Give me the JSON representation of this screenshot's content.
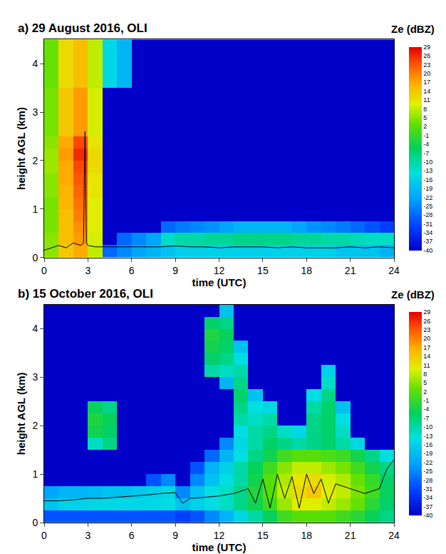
{
  "chart_data": [
    {
      "type": "heatmap",
      "title": "a) 29 August 2016, OLI",
      "xlabel": "time (UTC)",
      "ylabel": "height AGL (km)",
      "x": [
        0.5,
        1.5,
        2.5,
        3.5,
        4.5,
        5.5,
        6.5,
        7.5,
        8.5,
        9.5,
        10.5,
        11.5,
        12.5,
        13.5,
        14.5,
        15.5,
        16.5,
        17.5,
        18.5,
        19.5,
        20.5,
        21.5,
        22.5,
        23.5
      ],
      "y": [
        0.125,
        0.375,
        0.625,
        0.875,
        1.125,
        1.375,
        1.625,
        1.875,
        2.125,
        2.375,
        2.625,
        2.875,
        3.125,
        3.375,
        3.625,
        3.875,
        4.125,
        4.375
      ],
      "cells": [
        [
          5,
          14,
          17,
          8,
          -28,
          -25,
          -22,
          -20,
          -18,
          -16,
          -16,
          -16,
          -16,
          -16,
          -16,
          -16,
          -16,
          -16,
          -16,
          -16,
          -18,
          -18,
          -18,
          -20
        ],
        [
          5,
          15,
          18,
          9,
          -40,
          -28,
          -25,
          -22,
          -12,
          -10,
          -10,
          -9,
          -9,
          -8,
          -8,
          -8,
          -8,
          -9,
          -9,
          -10,
          -10,
          -11,
          -12,
          -12
        ],
        [
          4,
          15,
          19,
          10,
          -40,
          -40,
          -40,
          -40,
          -28,
          -26,
          -25,
          -24,
          -22,
          -20,
          -20,
          -20,
          -20,
          -22,
          -24,
          -25,
          -26,
          -28,
          -30,
          -32
        ],
        [
          4,
          15,
          20,
          10,
          -40,
          -40,
          -40,
          -40,
          -40,
          -40,
          -40,
          -40,
          -40,
          -40,
          -40,
          -40,
          -40,
          -40,
          -40,
          -40,
          -40,
          -40,
          -40,
          -40
        ],
        [
          4,
          16,
          21,
          10,
          -40,
          -40,
          -40,
          -40,
          -40,
          -40,
          -40,
          -40,
          -40,
          -40,
          -40,
          -40,
          -40,
          -40,
          -40,
          -40,
          -40,
          -40,
          -40,
          -40
        ],
        [
          5,
          16,
          22,
          11,
          -40,
          -40,
          -40,
          -40,
          -40,
          -40,
          -40,
          -40,
          -40,
          -40,
          -40,
          -40,
          -40,
          -40,
          -40,
          -40,
          -40,
          -40,
          -40,
          -40
        ],
        [
          5,
          17,
          23,
          11,
          -40,
          -40,
          -40,
          -40,
          -40,
          -40,
          -40,
          -40,
          -40,
          -40,
          -40,
          -40,
          -40,
          -40,
          -40,
          -40,
          -40,
          -40,
          -40,
          -40
        ],
        [
          6,
          17,
          24,
          12,
          -40,
          -40,
          -40,
          -40,
          -40,
          -40,
          -40,
          -40,
          -40,
          -40,
          -40,
          -40,
          -40,
          -40,
          -40,
          -40,
          -40,
          -40,
          -40,
          -40
        ],
        [
          6,
          18,
          26,
          12,
          -40,
          -40,
          -40,
          -40,
          -40,
          -40,
          -40,
          -40,
          -40,
          -40,
          -40,
          -40,
          -40,
          -40,
          -40,
          -40,
          -40,
          -40,
          -40,
          -40
        ],
        [
          5,
          17,
          24,
          11,
          -40,
          -40,
          -40,
          -40,
          -40,
          -40,
          -40,
          -40,
          -40,
          -40,
          -40,
          -40,
          -40,
          -40,
          -40,
          -40,
          -40,
          -40,
          -40,
          -40
        ],
        [
          4,
          14,
          18,
          9,
          -40,
          -40,
          -40,
          -40,
          -40,
          -40,
          -40,
          -40,
          -40,
          -40,
          -40,
          -40,
          -40,
          -40,
          -40,
          -40,
          -40,
          -40,
          -40,
          -40
        ],
        [
          4,
          14,
          18,
          9,
          -40,
          -40,
          -40,
          -40,
          -40,
          -40,
          -40,
          -40,
          -40,
          -40,
          -40,
          -40,
          -40,
          -40,
          -40,
          -40,
          -40,
          -40,
          -40,
          -40
        ],
        [
          4,
          14,
          18,
          9,
          -40,
          -40,
          -40,
          -40,
          -40,
          -40,
          -40,
          -40,
          -40,
          -40,
          -40,
          -40,
          -40,
          -40,
          -40,
          -40,
          -40,
          -40,
          -40,
          -40
        ],
        [
          4,
          14,
          18,
          9,
          -40,
          -40,
          -40,
          -40,
          -40,
          -40,
          -40,
          -40,
          -40,
          -40,
          -40,
          -40,
          -40,
          -40,
          -40,
          -40,
          -40,
          -40,
          -40,
          -40
        ],
        [
          3,
          12,
          15,
          8,
          -15,
          -20,
          -40,
          -40,
          -40,
          -40,
          -40,
          -40,
          -40,
          -40,
          -40,
          -40,
          -40,
          -40,
          -40,
          -40,
          -40,
          -40,
          -40,
          -40
        ],
        [
          3,
          12,
          15,
          8,
          -15,
          -20,
          -40,
          -40,
          -40,
          -40,
          -40,
          -40,
          -40,
          -40,
          -40,
          -40,
          -40,
          -40,
          -40,
          -40,
          -40,
          -40,
          -40,
          -40
        ],
        [
          3,
          12,
          15,
          8,
          -15,
          -20,
          -40,
          -40,
          -40,
          -40,
          -40,
          -40,
          -40,
          -40,
          -40,
          -40,
          -40,
          -40,
          -40,
          -40,
          -40,
          -40,
          -40,
          -40
        ],
        [
          3,
          12,
          15,
          8,
          -15,
          -20,
          -40,
          -40,
          -40,
          -40,
          -40,
          -40,
          -40,
          -40,
          -40,
          -40,
          -40,
          -40,
          -40,
          -40,
          -40,
          -40,
          -40,
          -40
        ]
      ],
      "xlim": [
        0,
        24
      ],
      "xticks": [
        0,
        3,
        6,
        9,
        12,
        15,
        18,
        21,
        24
      ],
      "ylim": [
        0,
        4.5
      ],
      "yticks": [
        0,
        1,
        2,
        3,
        4
      ],
      "colorbar": {
        "title": "Ze (dBZ)",
        "range": [
          -40,
          29
        ],
        "ticks": [
          29,
          26,
          23,
          20,
          17,
          14,
          11,
          8,
          5,
          2,
          -1,
          -4,
          -7,
          -10,
          -13,
          -16,
          -19,
          -22,
          -25,
          -28,
          -31,
          -34,
          -37,
          -40
        ]
      },
      "series": [
        {
          "color": "#000000",
          "x": [
            0,
            0.5,
            1,
            1.5,
            2,
            2.5,
            2.7,
            2.8,
            2.9,
            3,
            3.5,
            4,
            5,
            6,
            7,
            8,
            9,
            10,
            11,
            12,
            13,
            14,
            15,
            16,
            17,
            18,
            19,
            20,
            21,
            22,
            23,
            24
          ],
          "values": [
            0.15,
            0.2,
            0.25,
            0.2,
            0.3,
            0.25,
            0.3,
            2.6,
            0.3,
            0.25,
            0.22,
            0.22,
            0.22,
            0.22,
            0.22,
            0.22,
            0.24,
            0.22,
            0.22,
            0.2,
            0.22,
            0.22,
            0.22,
            0.2,
            0.22,
            0.2,
            0.2,
            0.2,
            0.22,
            0.2,
            0.22,
            0.2
          ]
        }
      ]
    },
    {
      "type": "heatmap",
      "title": "b) 15 October 2016, OLI",
      "xlabel": "time (UTC)",
      "ylabel": "height AGL (km)",
      "x": [
        0.5,
        1.5,
        2.5,
        3.5,
        4.5,
        5.5,
        6.5,
        7.5,
        8.5,
        9.5,
        10.5,
        11.5,
        12.5,
        13.5,
        14.5,
        15.5,
        16.5,
        17.5,
        18.5,
        19.5,
        20.5,
        21.5,
        22.5,
        23.5
      ],
      "y": [
        0.125,
        0.375,
        0.625,
        0.875,
        1.125,
        1.375,
        1.625,
        1.875,
        2.125,
        2.375,
        2.625,
        2.875,
        3.125,
        3.375,
        3.625,
        3.875,
        4.125,
        4.375
      ],
      "cells": [
        [
          -30,
          -30,
          -30,
          -30,
          -30,
          -30,
          -30,
          -30,
          -30,
          -32,
          -30,
          -25,
          -20,
          -15,
          -10,
          -5,
          0,
          2,
          2,
          2,
          0,
          -2,
          -5,
          -8
        ],
        [
          -18,
          -16,
          -16,
          -15,
          -15,
          -15,
          -15,
          -15,
          -14,
          -18,
          -16,
          -14,
          -12,
          -8,
          -4,
          0,
          6,
          10,
          10,
          8,
          6,
          3,
          -2,
          -6
        ],
        [
          -22,
          -20,
          -20,
          -19,
          -18,
          -18,
          -17,
          -16,
          -15,
          -25,
          -18,
          -14,
          -12,
          -8,
          -3,
          2,
          8,
          12,
          14,
          10,
          8,
          4,
          0,
          -5
        ],
        [
          -40,
          -40,
          -40,
          -40,
          -40,
          -40,
          -40,
          -30,
          -25,
          -40,
          -25,
          -18,
          -14,
          -10,
          -4,
          2,
          7,
          11,
          12,
          9,
          7,
          3,
          -1,
          -6
        ],
        [
          -40,
          -40,
          -40,
          -40,
          -40,
          -40,
          -40,
          -40,
          -40,
          -40,
          -30,
          -20,
          -16,
          -10,
          -5,
          0,
          5,
          8,
          8,
          6,
          4,
          0,
          -4,
          -8
        ],
        [
          -40,
          -40,
          -40,
          -40,
          -40,
          -40,
          -40,
          -40,
          -40,
          -40,
          -40,
          -28,
          -20,
          -14,
          -8,
          -4,
          0,
          2,
          2,
          1,
          0,
          -4,
          -8,
          -14
        ],
        [
          -40,
          -40,
          -40,
          -12,
          -8,
          -40,
          -40,
          -40,
          -40,
          -40,
          -40,
          -40,
          -25,
          -15,
          -10,
          -6,
          -8,
          -10,
          -8,
          -6,
          -10,
          -15,
          -40,
          -40
        ],
        [
          -40,
          -40,
          -40,
          -4,
          -6,
          -40,
          -40,
          -40,
          -40,
          -40,
          -40,
          -40,
          -40,
          -14,
          -10,
          -8,
          -12,
          -15,
          -8,
          -6,
          -12,
          -40,
          -40,
          -40
        ],
        [
          -40,
          -40,
          -40,
          -3,
          -5,
          -40,
          -40,
          -40,
          -40,
          -40,
          -40,
          -40,
          -40,
          -10,
          -12,
          -10,
          -40,
          -40,
          -8,
          -6,
          -14,
          -40,
          -40,
          -40
        ],
        [
          -40,
          -40,
          -40,
          -5,
          -8,
          -40,
          -40,
          -40,
          -40,
          -40,
          -40,
          -40,
          -40,
          -8,
          -14,
          -15,
          -40,
          -40,
          -10,
          -6,
          -18,
          -40,
          -40,
          -40
        ],
        [
          -40,
          -40,
          -40,
          -40,
          -40,
          -40,
          -40,
          -40,
          -40,
          -40,
          -40,
          -40,
          -40,
          -6,
          -18,
          -40,
          -40,
          -40,
          -14,
          -8,
          -40,
          -40,
          -40,
          -40
        ],
        [
          -40,
          -40,
          -40,
          -40,
          -40,
          -40,
          -40,
          -40,
          -40,
          -40,
          -40,
          -40,
          -20,
          -8,
          -40,
          -40,
          -40,
          -40,
          -40,
          -12,
          -40,
          -40,
          -40,
          -40
        ],
        [
          -40,
          -40,
          -40,
          -40,
          -40,
          -40,
          -40,
          -40,
          -40,
          -40,
          -40,
          -10,
          -12,
          -10,
          -40,
          -40,
          -40,
          -40,
          -40,
          -16,
          -40,
          -40,
          -40,
          -40
        ],
        [
          -40,
          -40,
          -40,
          -40,
          -40,
          -40,
          -40,
          -40,
          -40,
          -40,
          -40,
          -6,
          -8,
          -14,
          -40,
          -40,
          -40,
          -40,
          -40,
          -40,
          -40,
          -40,
          -40,
          -40
        ],
        [
          -40,
          -40,
          -40,
          -40,
          -40,
          -40,
          -40,
          -40,
          -40,
          -40,
          -40,
          -4,
          -6,
          -18,
          -40,
          -40,
          -40,
          -40,
          -40,
          -40,
          -40,
          -40,
          -40,
          -40
        ],
        [
          -40,
          -40,
          -40,
          -40,
          -40,
          -40,
          -40,
          -40,
          -40,
          -40,
          -40,
          -3,
          -5,
          -40,
          -40,
          -40,
          -40,
          -40,
          -40,
          -40,
          -40,
          -40,
          -40,
          -40
        ],
        [
          -40,
          -40,
          -40,
          -40,
          -40,
          -40,
          -40,
          -40,
          -40,
          -40,
          -40,
          -6,
          -8,
          -40,
          -40,
          -40,
          -40,
          -40,
          -40,
          -40,
          -40,
          -40,
          -40,
          -40
        ],
        [
          -40,
          -40,
          -40,
          -40,
          -40,
          -40,
          -40,
          -40,
          -40,
          -40,
          -40,
          -40,
          -18,
          -40,
          -40,
          -40,
          -40,
          -40,
          -40,
          -40,
          -40,
          -40,
          -40,
          -40
        ]
      ],
      "xlim": [
        0,
        24
      ],
      "xticks": [
        0,
        3,
        6,
        9,
        12,
        15,
        18,
        21,
        24
      ],
      "ylim": [
        0,
        4.5
      ],
      "yticks": [
        0,
        1,
        2,
        3,
        4
      ],
      "colorbar": {
        "title": "Ze (dBZ)",
        "range": [
          -40,
          29
        ],
        "ticks": [
          29,
          26,
          23,
          20,
          17,
          14,
          11,
          8,
          5,
          2,
          -1,
          -4,
          -7,
          -10,
          -13,
          -16,
          -19,
          -22,
          -25,
          -28,
          -31,
          -34,
          -37,
          -40
        ]
      },
      "series": [
        {
          "color": "#000000",
          "x": [
            0,
            1,
            2,
            3,
            4,
            5,
            6,
            7,
            8,
            9,
            9.5,
            10,
            11,
            12,
            13,
            14,
            14.5,
            15,
            15.5,
            16,
            16.5,
            17,
            17.5,
            18,
            18.5,
            19,
            19.5,
            20,
            21,
            22,
            23,
            23.5,
            24
          ],
          "values": [
            0.45,
            0.45,
            0.47,
            0.5,
            0.5,
            0.52,
            0.55,
            0.57,
            0.6,
            0.62,
            0.4,
            0.5,
            0.52,
            0.55,
            0.6,
            0.7,
            0.4,
            0.9,
            0.3,
            1.0,
            0.5,
            0.95,
            0.3,
            1.0,
            0.6,
            0.9,
            0.4,
            0.8,
            0.7,
            0.6,
            0.7,
            1.1,
            1.3
          ]
        }
      ]
    }
  ]
}
